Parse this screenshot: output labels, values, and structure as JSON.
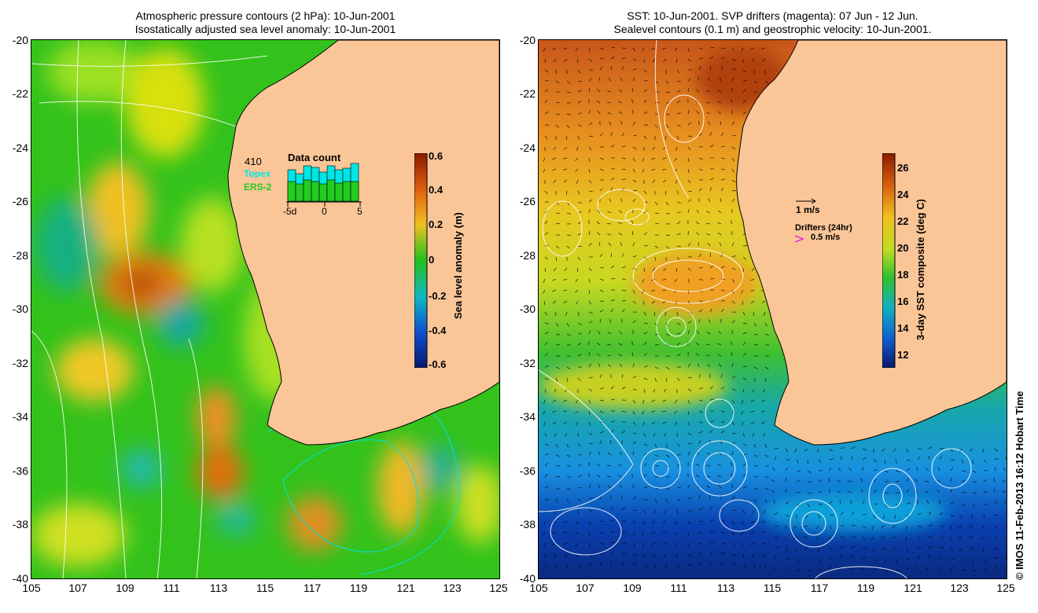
{
  "left_panel": {
    "title_line1": "Atmospheric pressure contours (2 hPa): 10-Jun-2001",
    "title_line2": "Isostatically adjusted sea level anomaly: 10-Jun-2001",
    "colorbar_label": "Sea level anomaly (m)",
    "colorbar_ticks": [
      "0.6",
      "0.4",
      "0.2",
      "0",
      "-0.2",
      "-0.4",
      "-0.6"
    ],
    "data_count": {
      "title": "Data count",
      "count": "410",
      "topex_label": "Topex",
      "ers_label": "ERS-2",
      "axis_labels": [
        "-5d",
        "0",
        "5"
      ]
    }
  },
  "right_panel": {
    "title_line1": "SST: 10-Jun-2001. SVP drifters (magenta): 07 Jun - 12 Jun.",
    "title_line2": "Sealevel contours (0.1 m) and geostrophic velocity: 10-Jun-2001.",
    "colorbar_label": "3-day SST composite (deg C)",
    "colorbar_ticks": [
      "26",
      "24",
      "22",
      "20",
      "18",
      "16",
      "14",
      "12"
    ],
    "velocity_scale": "1 m/s",
    "drifters_label": "Drifters (24hr)",
    "drifter_scale": "0.5 m/s"
  },
  "axes": {
    "lat_ticks": [
      "-20",
      "-22",
      "-24",
      "-26",
      "-28",
      "-30",
      "-32",
      "-34",
      "-36",
      "-38",
      "-40"
    ],
    "lon_ticks": [
      "105",
      "107",
      "109",
      "111",
      "113",
      "115",
      "117",
      "119",
      "121",
      "123",
      "125"
    ]
  },
  "copyright": "© IMOS 11-Feb-2013 16:12 Hobart Time",
  "colors": {
    "land": "#fbc697",
    "ocean_left": "#38c81a",
    "ocean_right_warm": "#e6a020",
    "ocean_right_cool": "#0a3aa0",
    "topex": "#00e5e5",
    "ers": "#22cc22",
    "drifter": "#e000e0"
  }
}
